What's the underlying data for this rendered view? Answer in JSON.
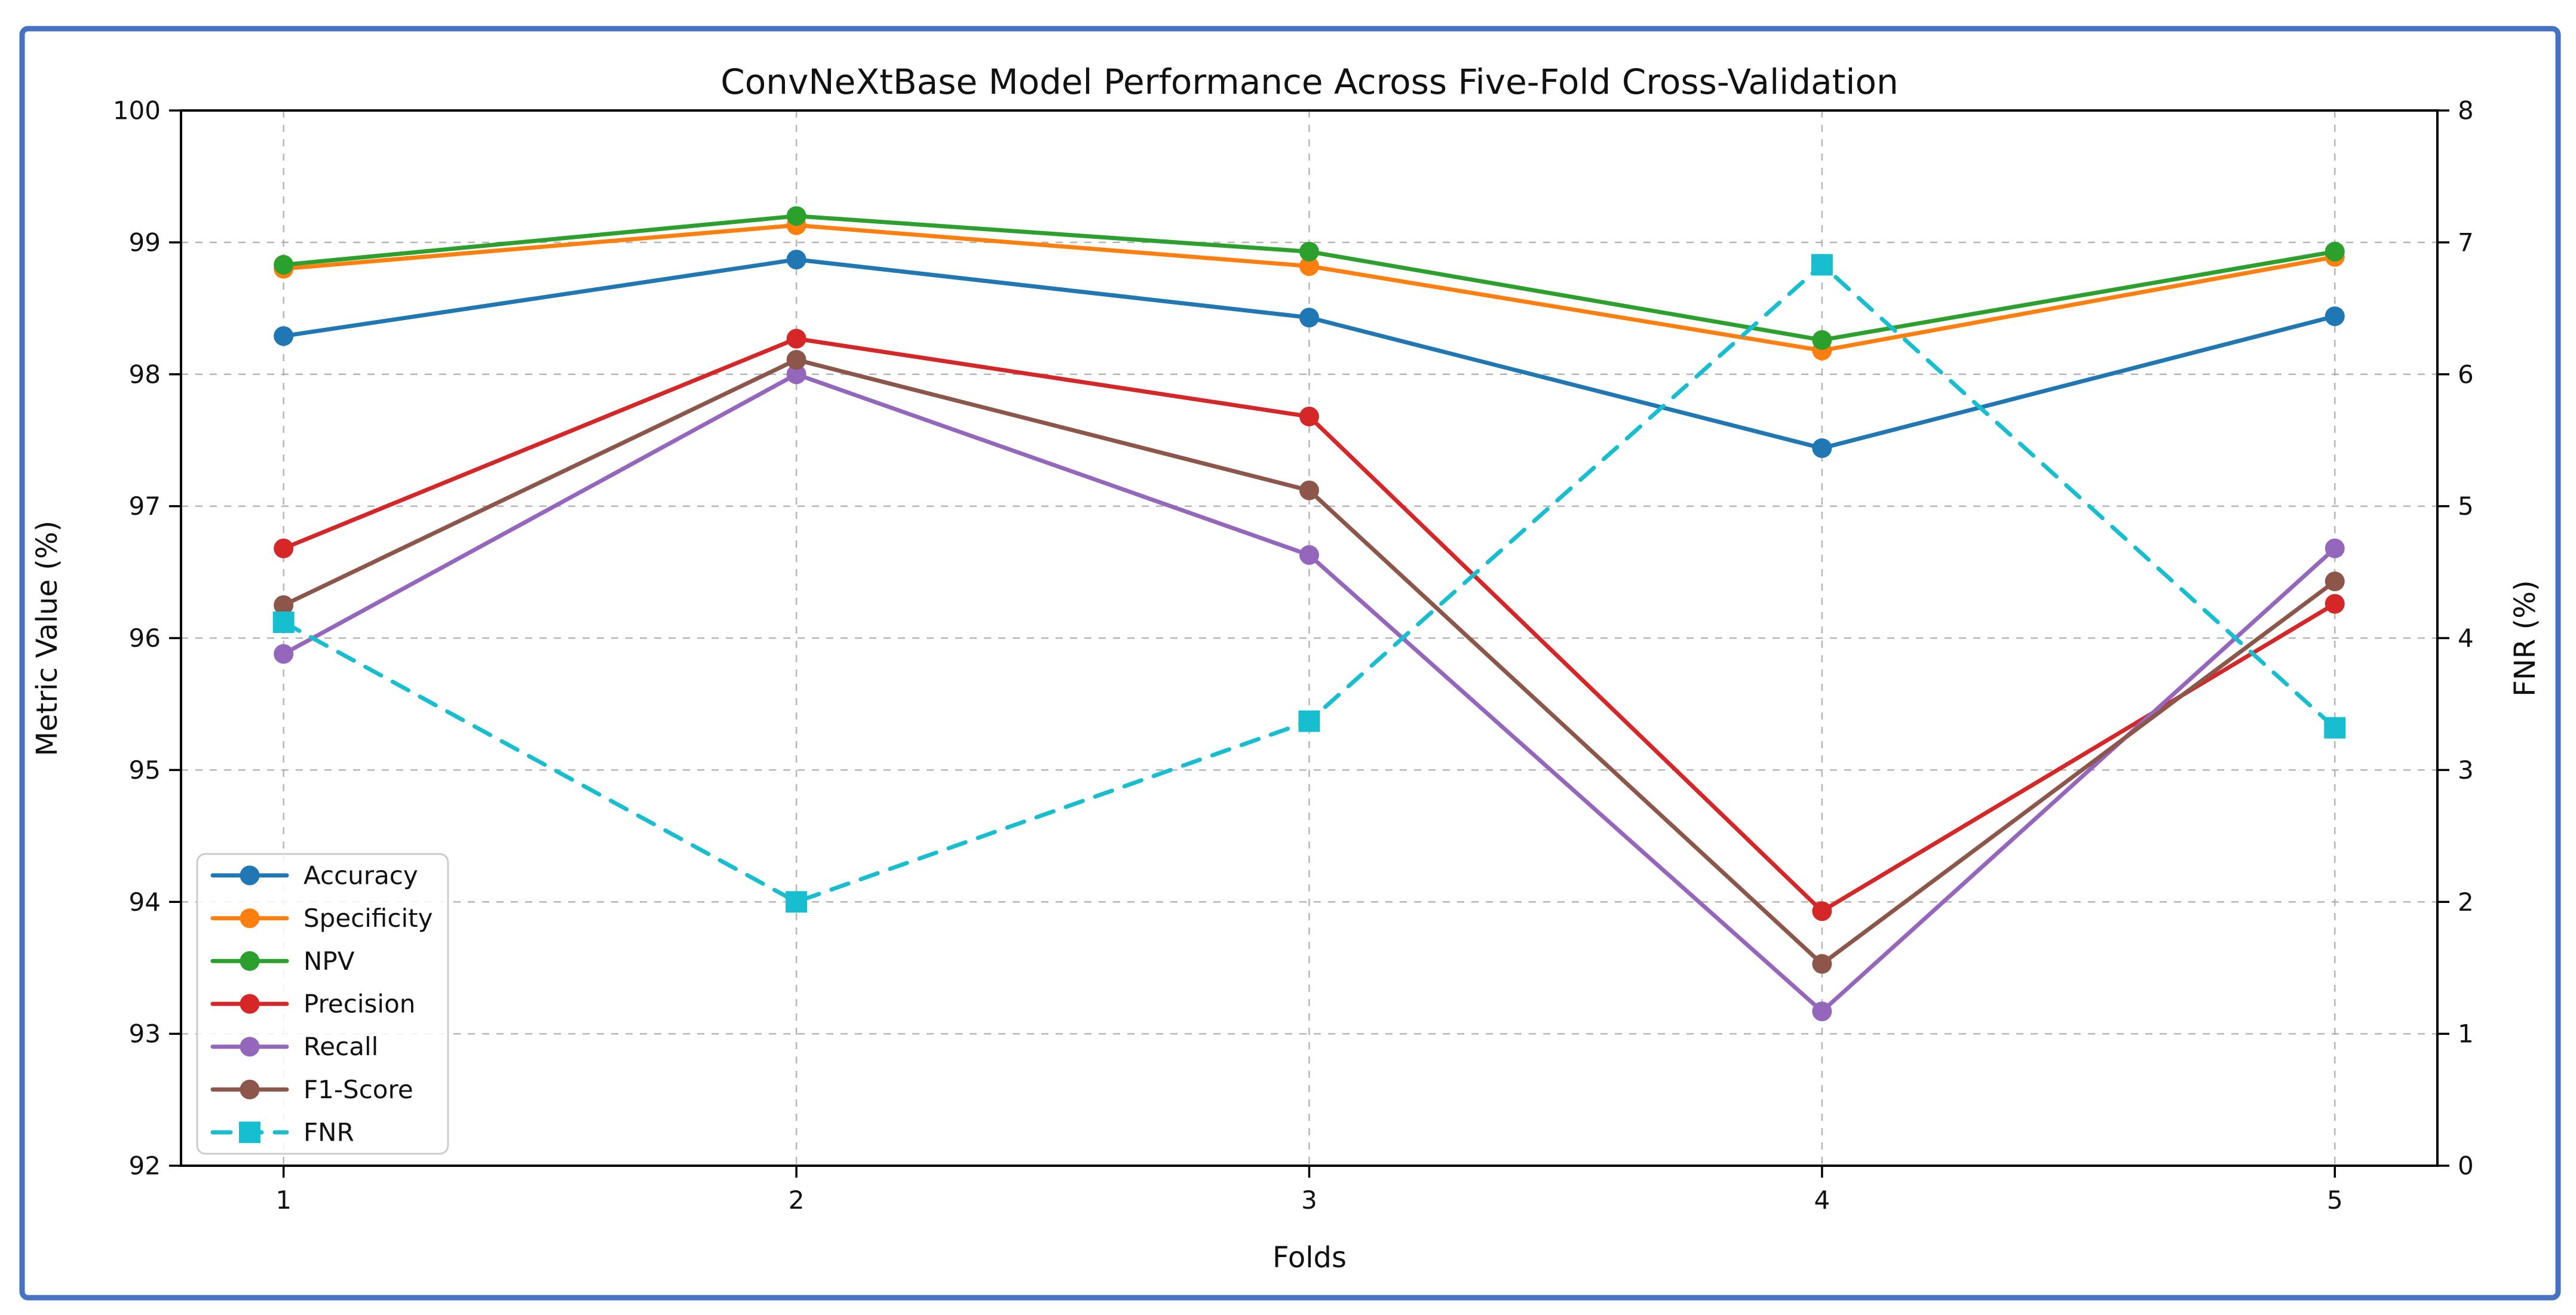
{
  "figure": {
    "border_color": "#4472C4",
    "background_color": "#ffffff"
  },
  "chart_data": {
    "type": "line",
    "title": "ConvNeXtBase Model Performance Across Five-Fold Cross-Validation",
    "xlabel": "Folds",
    "ylabel_left": "Metric Value (%)",
    "ylabel_right": "FNR (%)",
    "x": [
      1,
      2,
      3,
      4,
      5
    ],
    "xlim": [
      0.8,
      5.2
    ],
    "ylim_left": [
      92,
      100
    ],
    "ylim_right": [
      0,
      8
    ],
    "yticks_left": [
      92,
      93,
      94,
      95,
      96,
      97,
      98,
      99,
      100
    ],
    "yticks_right": [
      0,
      1,
      2,
      3,
      4,
      5,
      6,
      7,
      8
    ],
    "grid": {
      "on": true,
      "style": "dashed",
      "color": "#aaaaaa"
    },
    "legend_position": "lower-left",
    "series": [
      {
        "name": "Accuracy",
        "axis": "left",
        "color": "#1f77b4",
        "marker": "circle",
        "line": "solid",
        "values": [
          98.29,
          98.87,
          98.43,
          97.44,
          98.44
        ]
      },
      {
        "name": "Specificity",
        "axis": "left",
        "color": "#ff7f0e",
        "marker": "circle",
        "line": "solid",
        "values": [
          98.8,
          99.13,
          98.82,
          98.18,
          98.89
        ]
      },
      {
        "name": "NPV",
        "axis": "left",
        "color": "#2ca02c",
        "marker": "circle",
        "line": "solid",
        "values": [
          98.83,
          99.2,
          98.93,
          98.26,
          98.93
        ]
      },
      {
        "name": "Precision",
        "axis": "left",
        "color": "#d62728",
        "marker": "circle",
        "line": "solid",
        "values": [
          96.68,
          98.27,
          97.68,
          93.93,
          96.26
        ]
      },
      {
        "name": "Recall",
        "axis": "left",
        "color": "#9467bd",
        "marker": "circle",
        "line": "solid",
        "values": [
          95.88,
          98.0,
          96.63,
          93.17,
          96.68
        ]
      },
      {
        "name": "F1-Score",
        "axis": "left",
        "color": "#8c564b",
        "marker": "circle",
        "line": "solid",
        "values": [
          96.25,
          98.11,
          97.12,
          93.53,
          96.43
        ]
      },
      {
        "name": "FNR",
        "axis": "right",
        "color": "#17becf",
        "marker": "square",
        "line": "dashed",
        "values": [
          4.12,
          2.0,
          3.37,
          6.83,
          3.32
        ]
      }
    ]
  }
}
